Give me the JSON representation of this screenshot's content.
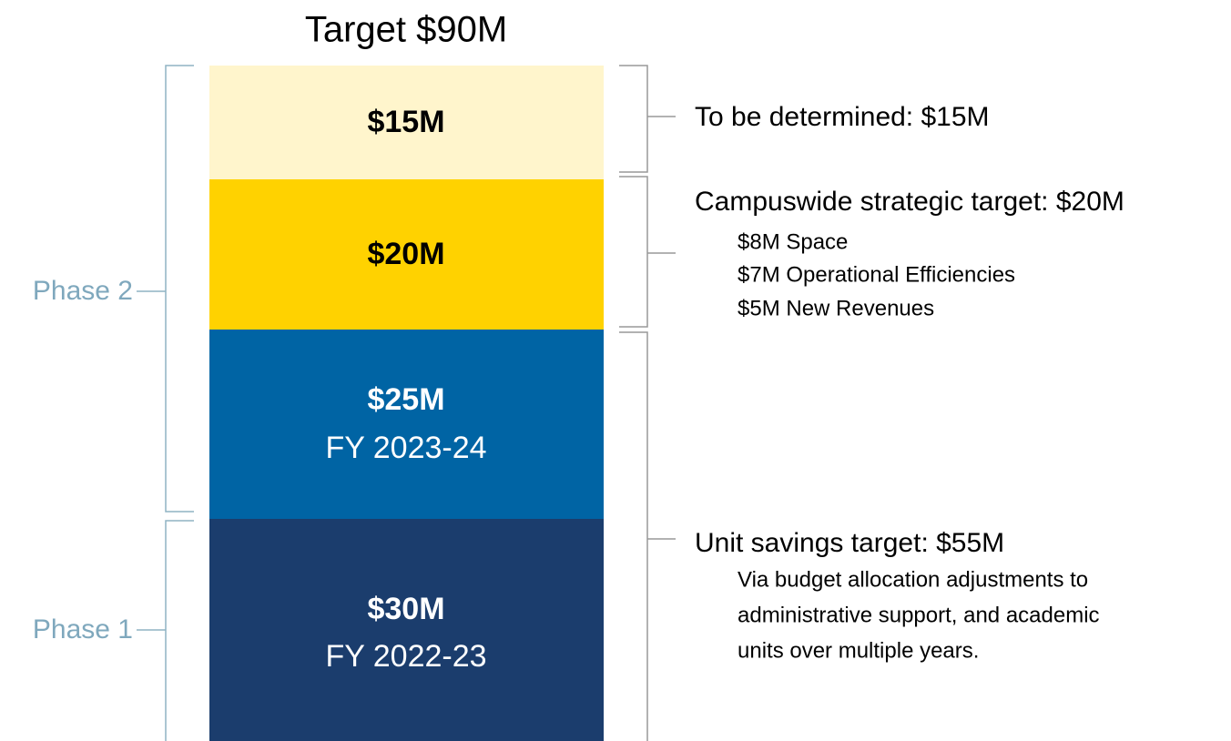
{
  "title": "Target $90M",
  "segments": [
    {
      "label": "$15M",
      "color": "#fff5cc"
    },
    {
      "label": "$20M",
      "color": "#ffd200"
    },
    {
      "label": "$25M",
      "sublabel": "FY 2023-24",
      "color": "#0064a4"
    },
    {
      "label": "$30M",
      "sublabel": "FY 2022-23",
      "color": "#1b3d6d"
    }
  ],
  "phases": [
    "Phase 2",
    "Phase 1"
  ],
  "notes": [
    {
      "title": "To be determined: $15M"
    },
    {
      "title": "Campuswide strategic target: $20M",
      "lines": [
        "$8M Space",
        "$7M Operational Efficiencies",
        "$5M New Revenues"
      ]
    },
    {
      "title": "Unit savings target: $55M",
      "lines": [
        "Via budget allocation adjustments to",
        "administrative support, and academic",
        "units over multiple years."
      ]
    }
  ]
}
